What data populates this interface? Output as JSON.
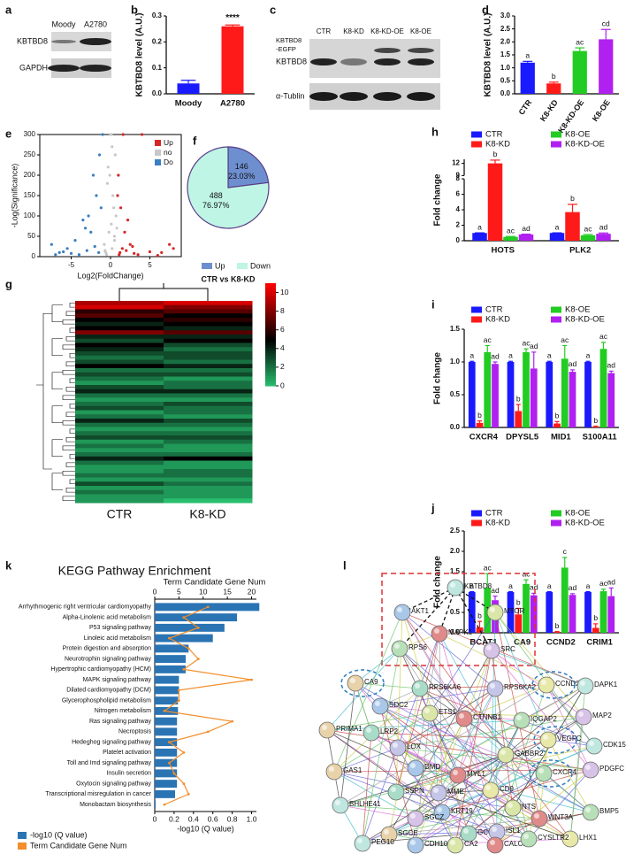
{
  "panel_labels": [
    "a",
    "b",
    "c",
    "d",
    "e",
    "f",
    "g",
    "h",
    "i",
    "j",
    "k",
    "l"
  ],
  "blot_a": {
    "lanes": [
      "Moody",
      "A2780"
    ],
    "rows": [
      "KBTBD8",
      "GAPDH"
    ]
  },
  "blot_c": {
    "lanes": [
      "CTR",
      "K8-KD",
      "K8-KD-OE",
      "K8-OE"
    ],
    "fusion_label": [
      "KBTBD8",
      "-EGFP"
    ],
    "rows": [
      "KBTBD8",
      "α-Tublin"
    ]
  },
  "chart_data": [
    {
      "type": "bar",
      "ylabel": "KBTBD8 level (A.U.)",
      "categories": [
        "Moody",
        "A2780"
      ],
      "values": [
        0.04,
        0.26
      ],
      "errors": [
        0.012,
        0.005
      ],
      "colors": [
        "#1a1aff",
        "#ff1a1a"
      ],
      "annotations": [
        null,
        "****"
      ],
      "ylim": [
        0,
        0.3
      ],
      "yticks": [
        {
          "value": 0,
          "label": "0.0"
        },
        0.1,
        0.2,
        0.3
      ]
    },
    {
      "type": "bar",
      "ylabel": "KBTBD8 level (A.U.)",
      "categories": [
        "CTR",
        "K8-KD",
        "K8-KD-OE",
        "K8-OE"
      ],
      "values": [
        1.2,
        0.4,
        1.65,
        2.1
      ],
      "errors": [
        0.05,
        0.05,
        0.12,
        0.38
      ],
      "colors": [
        "#1a1aff",
        "#ff1a1a",
        "#22cc22",
        "#b020f0"
      ],
      "letters": [
        "a",
        "b",
        "ac",
        "cd"
      ],
      "ylim": [
        0,
        3
      ],
      "yticks": [
        {
          "value": 0,
          "label": "0.0"
        },
        0.5,
        {
          "value": 1,
          "label": "1.0"
        },
        1.5,
        {
          "value": 2,
          "label": "2.0"
        },
        2.5,
        {
          "value": 3,
          "label": "3.0"
        }
      ]
    },
    {
      "type": "scatter",
      "xlabel": "Log2(FoldChange)",
      "ylabel": "-Log(Significance)",
      "xlim": [
        -9,
        9
      ],
      "xticks": [
        -5,
        0,
        5
      ],
      "ylim": [
        0,
        300
      ],
      "yticks": [
        0,
        50,
        100,
        150,
        200,
        250,
        300
      ],
      "series": [
        {
          "name": "Up",
          "color": "#d62728",
          "x": [
            1.2,
            1.5,
            2.0,
            1.1,
            3.0,
            2.5,
            5.0,
            6.5,
            8.0,
            1.8,
            2.2,
            1.3,
            4.0,
            7.5,
            1.0,
            3.5,
            1.6,
            2.8,
            0.9,
            6.0
          ],
          "y": [
            10,
            20,
            15,
            5,
            8,
            30,
            12,
            10,
            20,
            60,
            90,
            120,
            300,
            30,
            200,
            5,
            300,
            25,
            150,
            3
          ]
        },
        {
          "name": "no",
          "color": "#c8c8c8",
          "x": [
            -0.5,
            0.2,
            0.5,
            -0.2,
            0.1,
            0.7,
            -0.8,
            0.3,
            -0.1,
            0.6,
            0.4,
            -0.4,
            0.0,
            0.8,
            -0.6,
            0.2,
            -0.3,
            0.5,
            0.1,
            -0.7
          ],
          "y": [
            5,
            20,
            40,
            60,
            80,
            100,
            30,
            150,
            200,
            250,
            120,
            180,
            300,
            70,
            10,
            270,
            220,
            50,
            300,
            15
          ]
        },
        {
          "name": "Do",
          "color": "#3a7fc1",
          "x": [
            -1.5,
            -2.0,
            -3.0,
            -4.0,
            -5.0,
            -6.0,
            -7.5,
            -2.5,
            -1.2,
            -3.5,
            -4.5,
            -1.8,
            -5.5,
            -2.2,
            -1.0,
            -6.5,
            -3.2,
            -1.4,
            -2.8,
            -7.0
          ],
          "y": [
            10,
            25,
            15,
            5,
            8,
            12,
            30,
            60,
            120,
            90,
            40,
            150,
            20,
            200,
            300,
            10,
            70,
            250,
            100,
            5
          ]
        }
      ]
    },
    {
      "type": "pie",
      "title": "CTR vs K8-KD",
      "categories": [
        "Up",
        "Down"
      ],
      "values": [
        146,
        488
      ],
      "percents": [
        23.03,
        76.97
      ],
      "percent_labels": [
        "23.03%",
        "76.97%"
      ],
      "colors": [
        "#6e8fcf",
        "#bff5e4"
      ]
    },
    {
      "type": "heatmap",
      "columns": [
        "CTR",
        "K8-KD"
      ],
      "zlim": [
        0,
        11
      ],
      "zticks": [
        0,
        2,
        4,
        6,
        8,
        10
      ],
      "values": [
        [
          9,
          10
        ],
        [
          10,
          8
        ],
        [
          6,
          7
        ],
        [
          7,
          5
        ],
        [
          5,
          6
        ],
        [
          4,
          5
        ],
        [
          5,
          4
        ],
        [
          8,
          7
        ],
        [
          4,
          4
        ],
        [
          3,
          5
        ],
        [
          5,
          3
        ],
        [
          4,
          2
        ],
        [
          3,
          3
        ],
        [
          2,
          3
        ],
        [
          3,
          2
        ],
        [
          5,
          4
        ],
        [
          2,
          2
        ],
        [
          3,
          3
        ],
        [
          2,
          1
        ],
        [
          1,
          2
        ],
        [
          3,
          2
        ],
        [
          4,
          4
        ],
        [
          2,
          2
        ],
        [
          1,
          1
        ],
        [
          2,
          3
        ],
        [
          3,
          2
        ],
        [
          1,
          2
        ],
        [
          2,
          1
        ],
        [
          4,
          3
        ],
        [
          2,
          2
        ],
        [
          1,
          1
        ],
        [
          2,
          2
        ],
        [
          3,
          3
        ],
        [
          1,
          2
        ],
        [
          2,
          1
        ],
        [
          1,
          1
        ],
        [
          2,
          2
        ],
        [
          4,
          5
        ],
        [
          2,
          1
        ],
        [
          1,
          1
        ],
        [
          1,
          2
        ],
        [
          2,
          2
        ],
        [
          1,
          1
        ],
        [
          3,
          2
        ],
        [
          1,
          1
        ],
        [
          2,
          1
        ],
        [
          1,
          1
        ],
        [
          1,
          0
        ]
      ]
    },
    {
      "type": "bar",
      "ylabel": "Fold change",
      "categories": [
        "HOTS",
        "PLK2"
      ],
      "ylim": [
        0,
        13
      ],
      "ybreak": [
        8,
        9
      ],
      "yticks": [
        0,
        2,
        4,
        6,
        8,
        9,
        12
      ],
      "series": [
        {
          "name": "CTR",
          "color": "#1a1aff",
          "values": [
            1,
            1
          ],
          "errors": [
            0.02,
            0.02
          ],
          "letters": [
            "a",
            "a"
          ]
        },
        {
          "name": "K8-KD",
          "color": "#ff1a1a",
          "values": [
            12,
            3.7
          ],
          "errors": [
            0.8,
            1.0
          ],
          "letters": [
            "b",
            "b"
          ]
        },
        {
          "name": "K8-OE",
          "color": "#22cc22",
          "values": [
            0.5,
            0.7
          ],
          "errors": [
            0.05,
            0.1
          ],
          "letters": [
            "ac",
            "ac"
          ]
        },
        {
          "name": "K8-KD-OE",
          "color": "#b020f0",
          "values": [
            0.8,
            0.9
          ],
          "errors": [
            0.05,
            0.1
          ],
          "letters": [
            "ad",
            "ad"
          ]
        }
      ]
    },
    {
      "type": "bar",
      "ylabel": "Fold change",
      "categories": [
        "CXCR4",
        "DPYSL5",
        "MID1",
        "S100A11"
      ],
      "ylim": [
        0,
        1.5
      ],
      "yticks": [
        {
          "value": 0,
          "label": "0.0"
        },
        0.5,
        {
          "value": 1,
          "label": "1.0"
        },
        1.5
      ],
      "series": [
        {
          "name": "CTR",
          "color": "#1a1aff",
          "values": [
            1,
            1,
            1,
            1
          ],
          "errors": [
            0.01,
            0.01,
            0.01,
            0.01
          ],
          "letters": [
            "a",
            "a",
            "a",
            "a"
          ]
        },
        {
          "name": "K8-KD",
          "color": "#ff1a1a",
          "values": [
            0.07,
            0.25,
            0.06,
            0.01
          ],
          "errors": [
            0.03,
            0.1,
            0.03,
            0.01
          ],
          "letters": [
            "b",
            "b",
            "b",
            "b"
          ]
        },
        {
          "name": "K8-OE",
          "color": "#22cc22",
          "values": [
            1.15,
            1.15,
            1.05,
            1.2
          ],
          "errors": [
            0.1,
            0.05,
            0.2,
            0.1
          ],
          "letters": [
            "ac",
            "ac",
            "ac",
            "ac"
          ]
        },
        {
          "name": "K8-KD-OE",
          "color": "#b020f0",
          "values": [
            0.97,
            0.9,
            0.85,
            0.83
          ],
          "errors": [
            0.03,
            0.25,
            0.03,
            0.03
          ],
          "letters": [
            "ad",
            "ad",
            "ad",
            "ad"
          ]
        }
      ]
    },
    {
      "type": "bar",
      "ylabel": "Fold change",
      "categories": [
        "BCAT1",
        "CA9",
        "CCND2",
        "CRIM1"
      ],
      "ylim": [
        0,
        2.5
      ],
      "yticks": [
        {
          "value": 0,
          "label": "0.0"
        },
        0.5,
        {
          "value": 1,
          "label": "1.0"
        },
        1.5,
        {
          "value": 2,
          "label": "2.0"
        },
        2.5
      ],
      "series": [
        {
          "name": "CTR",
          "color": "#1a1aff",
          "values": [
            1,
            1,
            1,
            1
          ],
          "errors": [
            0.01,
            0.01,
            0.01,
            0.01
          ],
          "letters": [
            "a",
            "a",
            "a",
            "a"
          ]
        },
        {
          "name": "K8-KD",
          "color": "#ff1a1a",
          "values": [
            0.13,
            0.45,
            0.02,
            0.12
          ],
          "errors": [
            0.15,
            0.15,
            0.01,
            0.1
          ],
          "letters": [
            "b",
            "b",
            "b",
            "b"
          ]
        },
        {
          "name": "K8-OE",
          "color": "#22cc22",
          "values": [
            1.1,
            1.2,
            1.6,
            1.02
          ],
          "errors": [
            0.35,
            0.1,
            0.25,
            0.05
          ],
          "letters": [
            "ac",
            "ac",
            "c",
            "ac"
          ]
        },
        {
          "name": "K8-KD-OE",
          "color": "#b020f0",
          "values": [
            0.8,
            0.92,
            0.93,
            0.9
          ],
          "errors": [
            0.1,
            0.05,
            0.03,
            0.2
          ],
          "letters": [
            "ad",
            "ad",
            "ad",
            "ad"
          ]
        }
      ]
    },
    {
      "type": "combo",
      "title": "KEGG Pathway Enrichment",
      "categories": [
        "Arrhythmogenic right ventricular cardiomyopathy",
        "Alpha-Linolenic acid metabolism",
        "P53 signaling pathway",
        "Linoleic acid metabolism",
        "Protein digestion and absorption",
        "Neurotrophin signaling pathway",
        "Hypertrophic cardiomyopathy (HCM)",
        "MAPK signaling pathway",
        "Dilated cardiomyopathy (DCM)",
        "Glycerophospholipid metabolism",
        "Nitrogen metabolism",
        "Ras signaling pathway",
        "Necroptosis",
        "Hedeghog signaling pathway",
        "Platelet activation",
        "Toll and Imd signaling pathway",
        "Insulin secretion",
        "Oxytocin signaling pathway",
        "Transcriptional misregulation in cancer",
        "Monobactam biosynthesis"
      ],
      "xlim": [
        0,
        1.05
      ],
      "xticks": [
        0,
        0.2,
        0.4,
        0.6,
        0.8,
        {
          "value": 1,
          "label": "1.0"
        }
      ],
      "x2lim": [
        0,
        21
      ],
      "x2ticks": [
        0,
        5,
        10,
        15,
        20
      ],
      "series": [
        {
          "name": "-log10 (Q value)",
          "color": "#2a74b4",
          "values": [
            1.08,
            0.85,
            0.72,
            0.6,
            0.35,
            0.32,
            0.32,
            0.25,
            0.25,
            0.24,
            0.24,
            0.23,
            0.23,
            0.23,
            0.23,
            0.23,
            0.23,
            0.23,
            0.21,
            0.01
          ]
        },
        {
          "name": "Term Candidate Gene Num",
          "color": "#f28e2b",
          "axis": "x2",
          "values": [
            11,
            6,
            9,
            3,
            7,
            9,
            6,
            20,
            5,
            5,
            2,
            16,
            11,
            3,
            6,
            3,
            4,
            6,
            7,
            2
          ]
        }
      ]
    }
  ],
  "network": {
    "nodes": [
      "KBTBD8",
      "AKT1",
      "MTOR",
      "MAPK1",
      "RPS6",
      "SRC",
      "CA9",
      "RPS6KA6",
      "RPS6KA2",
      "CCND2",
      "DAPK1",
      "SDC2",
      "ETS1",
      "CTNNB1",
      "IQGAP2",
      "MAP2",
      "PRIMA1",
      "LRP2",
      "LOX",
      "VEGFC",
      "CDK15",
      "DMD",
      "GABBR2",
      "MYL1",
      "CXCR4",
      "PDGFC",
      "GAS1",
      "SSPN",
      "MME",
      "CD9",
      "BHLHE41",
      "KRT19",
      "NTS",
      "WNT3A",
      "BMP5",
      "SGCZ",
      "SGCE",
      "GCG",
      "ISL1",
      "LHX1",
      "PEG10",
      "CDH10",
      "CA2",
      "CALCB",
      "CYSLTR2"
    ]
  }
}
